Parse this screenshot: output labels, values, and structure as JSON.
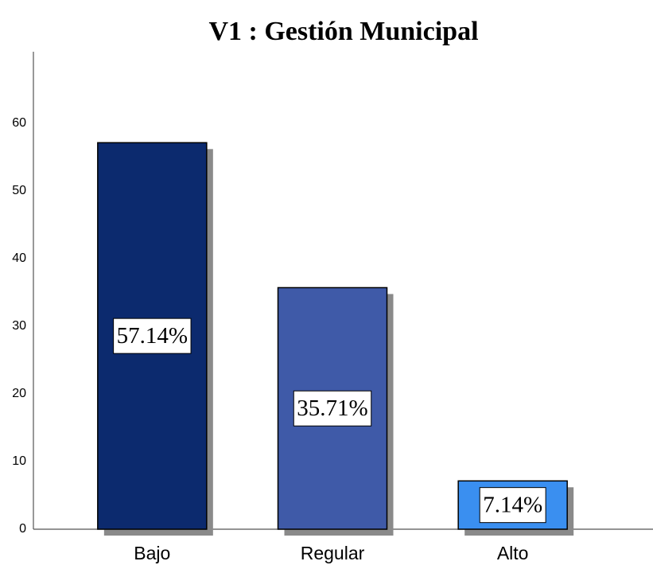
{
  "chart_data": {
    "type": "bar",
    "title": "V1 : Gestión Municipal",
    "categories": [
      "Bajo",
      "Regular",
      "Alto"
    ],
    "values": [
      57.14,
      35.71,
      7.14
    ],
    "value_labels": [
      "57.14%",
      "35.71%",
      "7.14%"
    ],
    "colors": [
      "#0c2a6e",
      "#3f5aa8",
      "#3a8ff0"
    ],
    "ylim": [
      0,
      70
    ],
    "yticks": [
      0,
      10,
      20,
      30,
      40,
      50,
      60
    ],
    "grid": false
  }
}
